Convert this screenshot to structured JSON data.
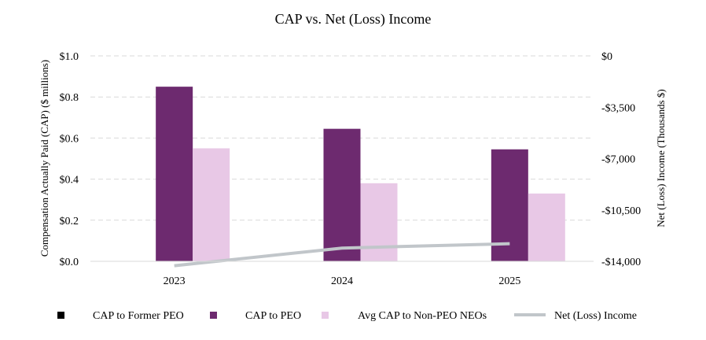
{
  "chart_data": {
    "type": "bar",
    "title": "CAP vs. Net (Loss) Income",
    "categories": [
      "2023",
      "2024",
      "2025"
    ],
    "ylabel": "Compensation Actually Paid (CAP) ($ millions)",
    "y2label": "Net (Loss) Income (Thousands $)",
    "ylim": [
      0,
      1.0
    ],
    "y2lim": [
      -14000,
      0
    ],
    "yticks": [
      "$0.0",
      "$0.2",
      "$0.4",
      "$0.6",
      "$0.8",
      "$1.0"
    ],
    "y2ticks": [
      "-$14,000",
      "-$10,500",
      "-$7,000",
      "-$3,500",
      "$0"
    ],
    "grid": true,
    "legend_position": "bottom",
    "series": [
      {
        "name": "CAP to Former PEO",
        "kind": "bar",
        "axis": "left",
        "color": "#000000",
        "values": [
          0,
          0,
          0
        ]
      },
      {
        "name": "CAP to PEO",
        "kind": "bar",
        "axis": "left",
        "color": "#6d2a6f",
        "values": [
          0.85,
          0.645,
          0.545
        ]
      },
      {
        "name": "Avg CAP to Non-PEO NEOs",
        "kind": "bar",
        "axis": "left",
        "color": "#e8c8e6",
        "values": [
          0.55,
          0.38,
          0.33
        ]
      },
      {
        "name": "Net (Loss) Income",
        "kind": "line",
        "axis": "right",
        "color": "#c1c6ca",
        "values": [
          -14300,
          -13100,
          -12800
        ]
      }
    ]
  }
}
